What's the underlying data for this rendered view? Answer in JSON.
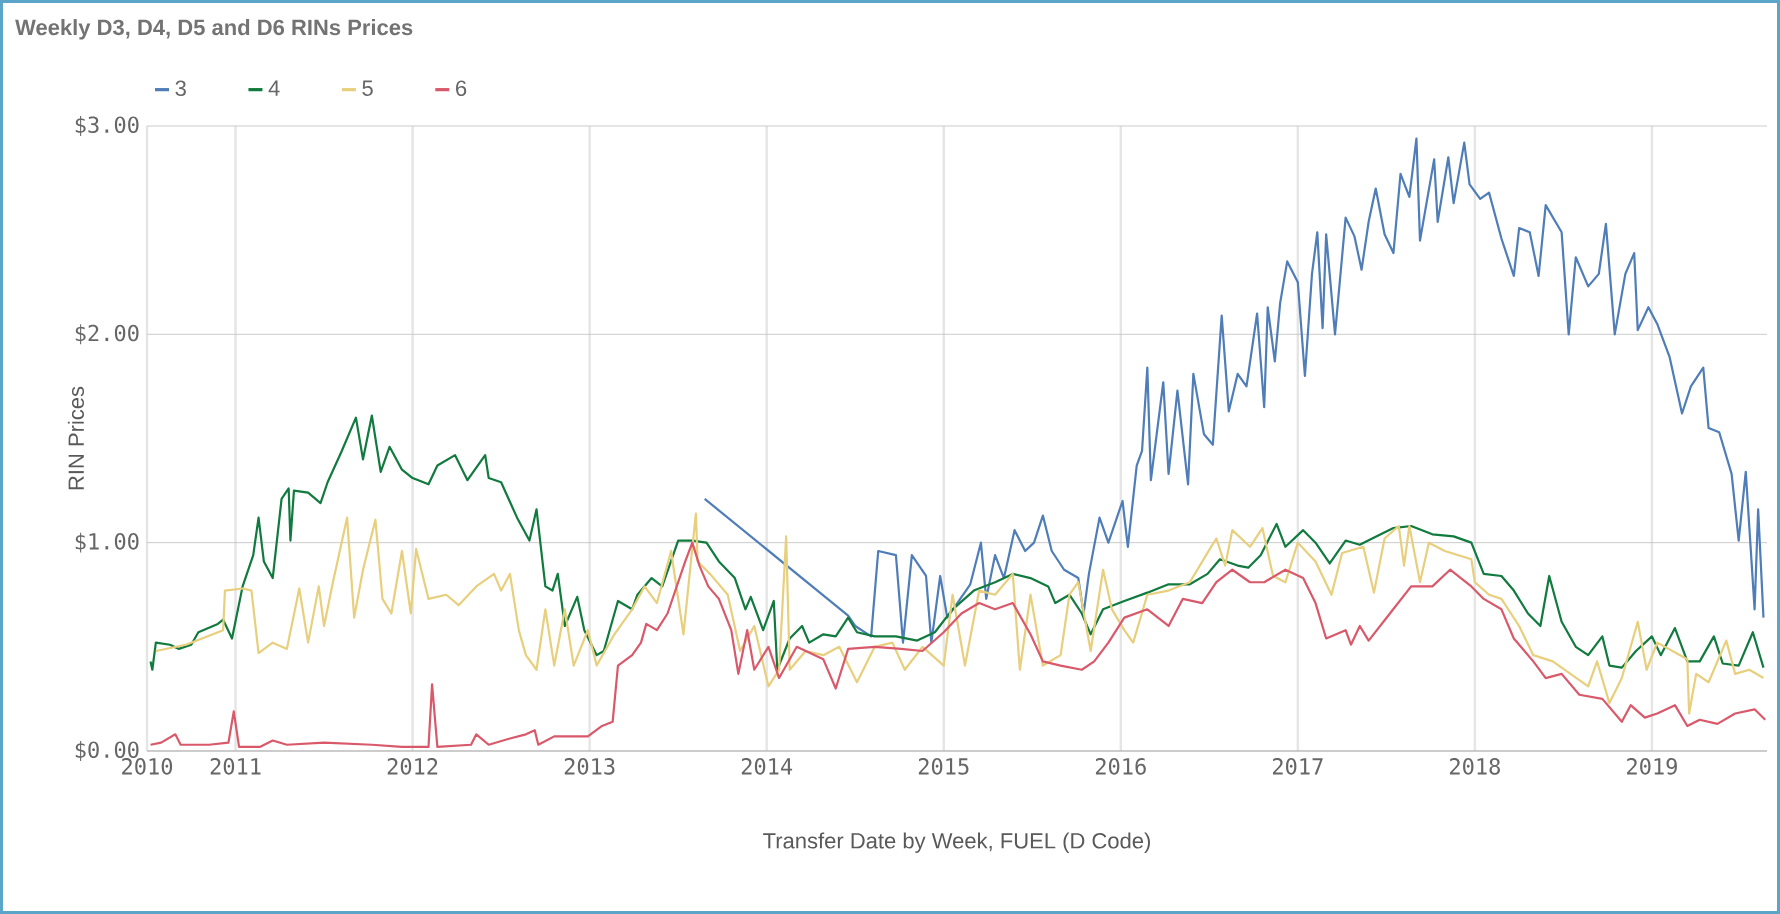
{
  "chart_data": {
    "type": "line",
    "title": "Weekly D3, D4, D5 and D6 RINs Prices",
    "xlabel": "Transfer Date by Week,  FUEL (D Code)",
    "ylabel": "RIN Prices",
    "xlim": [
      2010.5,
      2019.65
    ],
    "ylim": [
      0,
      3
    ],
    "xticks": [
      {
        "value": 2010.5,
        "label": "2010"
      },
      {
        "value": 2011,
        "label": "2011"
      },
      {
        "value": 2012,
        "label": "2012"
      },
      {
        "value": 2013,
        "label": "2013"
      },
      {
        "value": 2014,
        "label": "2014"
      },
      {
        "value": 2015,
        "label": "2015"
      },
      {
        "value": 2016,
        "label": "2016"
      },
      {
        "value": 2017,
        "label": "2017"
      },
      {
        "value": 2018,
        "label": "2018"
      },
      {
        "value": 2019,
        "label": "2019"
      }
    ],
    "yticks": [
      {
        "value": 0,
        "label": "$0.00"
      },
      {
        "value": 1,
        "label": "$1.00"
      },
      {
        "value": 2,
        "label": "$2.00"
      },
      {
        "value": 3,
        "label": "$3.00"
      }
    ],
    "grid": true,
    "legend": "top left",
    "series": [
      {
        "name": "3",
        "color": "#4f7db8",
        "x": [
          2013.65,
          2014.46,
          2014.5,
          2014.59,
          2014.63,
          2014.73,
          2014.77,
          2014.82,
          2014.9,
          2014.93,
          2014.98,
          2015.02,
          2015.15,
          2015.21,
          2015.24,
          2015.29,
          2015.34,
          2015.4,
          2015.46,
          2015.51,
          2015.56,
          2015.61,
          2015.68,
          2015.76,
          2015.79,
          2015.82,
          2015.88,
          2015.93,
          2016.01,
          2016.04,
          2016.09,
          2016.12,
          2016.15,
          2016.17,
          2016.24,
          2016.27,
          2016.32,
          2016.38,
          2016.41,
          2016.47,
          2016.52,
          2016.57,
          2016.61,
          2016.66,
          2016.71,
          2016.77,
          2016.81,
          2016.83,
          2016.87,
          2016.9,
          2016.94,
          2017.0,
          2017.04,
          2017.08,
          2017.11,
          2017.14,
          2017.16,
          2017.21,
          2017.27,
          2017.32,
          2017.36,
          2017.4,
          2017.44,
          2017.49,
          2017.54,
          2017.58,
          2017.63,
          2017.67,
          2017.69,
          2017.77,
          2017.79,
          2017.85,
          2017.88,
          2017.94,
          2017.97,
          2018.03,
          2018.08,
          2018.15,
          2018.22,
          2018.25,
          2018.31,
          2018.36,
          2018.4,
          2018.49,
          2018.53,
          2018.57,
          2018.64,
          2018.7,
          2018.74,
          2018.79,
          2018.85,
          2018.9,
          2018.92,
          2018.98,
          2019.03,
          2019.1,
          2019.17,
          2019.22,
          2019.29,
          2019.32,
          2019.38,
          2019.45,
          2019.49,
          2019.53,
          2019.58,
          2019.6,
          2019.63
        ],
        "values": [
          1.21,
          0.65,
          0.6,
          0.55,
          0.96,
          0.94,
          0.52,
          0.94,
          0.84,
          0.52,
          0.84,
          0.64,
          0.8,
          1.0,
          0.73,
          0.94,
          0.83,
          1.06,
          0.96,
          1.0,
          1.13,
          0.96,
          0.87,
          0.83,
          0.66,
          0.85,
          1.12,
          1.0,
          1.2,
          0.98,
          1.37,
          1.44,
          1.84,
          1.3,
          1.77,
          1.33,
          1.73,
          1.28,
          1.81,
          1.52,
          1.47,
          2.09,
          1.63,
          1.81,
          1.75,
          2.1,
          1.65,
          2.13,
          1.87,
          2.15,
          2.35,
          2.25,
          1.8,
          2.29,
          2.49,
          2.03,
          2.48,
          2.0,
          2.56,
          2.47,
          2.31,
          2.54,
          2.7,
          2.48,
          2.39,
          2.77,
          2.66,
          2.94,
          2.45,
          2.84,
          2.54,
          2.85,
          2.63,
          2.92,
          2.72,
          2.65,
          2.68,
          2.46,
          2.28,
          2.51,
          2.49,
          2.28,
          2.62,
          2.49,
          2.0,
          2.37,
          2.23,
          2.29,
          2.53,
          2.0,
          2.29,
          2.39,
          2.02,
          2.13,
          2.05,
          1.89,
          1.62,
          1.75,
          1.84,
          1.55,
          1.53,
          1.33,
          1.01,
          1.34,
          0.68,
          1.16,
          0.64
        ]
      },
      {
        "name": "4",
        "color": "#117a3e",
        "x": [
          2010.52,
          2010.53,
          2010.55,
          2010.63,
          2010.68,
          2010.75,
          2010.79,
          2010.9,
          2010.93,
          2010.98,
          2011.04,
          2011.1,
          2011.13,
          2011.16,
          2011.21,
          2011.26,
          2011.3,
          2011.31,
          2011.33,
          2011.41,
          2011.48,
          2011.52,
          2011.6,
          2011.68,
          2011.72,
          2011.77,
          2011.82,
          2011.87,
          2011.94,
          2012.0,
          2012.09,
          2012.14,
          2012.24,
          2012.31,
          2012.41,
          2012.43,
          2012.5,
          2012.59,
          2012.66,
          2012.7,
          2012.75,
          2012.79,
          2012.82,
          2012.86,
          2012.93,
          2012.97,
          2013.04,
          2013.08,
          2013.16,
          2013.24,
          2013.27,
          2013.35,
          2013.41,
          2013.5,
          2013.58,
          2013.66,
          2013.73,
          2013.82,
          2013.88,
          2013.91,
          2013.98,
          2014.04,
          2014.06,
          2014.13,
          2014.2,
          2014.24,
          2014.32,
          2014.39,
          2014.46,
          2014.51,
          2014.61,
          2014.73,
          2014.85,
          2014.95,
          2015.05,
          2015.17,
          2015.29,
          2015.39,
          2015.49,
          2015.59,
          2015.63,
          2015.71,
          2015.78,
          2015.83,
          2015.9,
          2016.02,
          2016.15,
          2016.27,
          2016.39,
          2016.49,
          2016.56,
          2016.66,
          2016.72,
          2016.79,
          2016.88,
          2016.93,
          2017.03,
          2017.1,
          2017.18,
          2017.27,
          2017.35,
          2017.42,
          2017.54,
          2017.64,
          2017.76,
          2017.88,
          2017.98,
          2018.05,
          2018.15,
          2018.22,
          2018.3,
          2018.37,
          2018.42,
          2018.49,
          2018.57,
          2018.64,
          2018.72,
          2018.76,
          2018.83,
          2018.91,
          2019.0,
          2019.05,
          2019.13,
          2019.2,
          2019.27,
          2019.35,
          2019.4,
          2019.49,
          2019.57,
          2019.63
        ],
        "values": [
          0.43,
          0.39,
          0.52,
          0.51,
          0.49,
          0.51,
          0.57,
          0.61,
          0.63,
          0.54,
          0.79,
          0.94,
          1.12,
          0.91,
          0.83,
          1.21,
          1.26,
          1.01,
          1.25,
          1.24,
          1.19,
          1.29,
          1.44,
          1.6,
          1.4,
          1.61,
          1.34,
          1.46,
          1.35,
          1.31,
          1.28,
          1.37,
          1.42,
          1.3,
          1.42,
          1.31,
          1.29,
          1.12,
          1.01,
          1.16,
          0.79,
          0.77,
          0.85,
          0.6,
          0.74,
          0.58,
          0.46,
          0.48,
          0.72,
          0.68,
          0.75,
          0.83,
          0.79,
          1.01,
          1.01,
          1.0,
          0.91,
          0.83,
          0.68,
          0.74,
          0.58,
          0.72,
          0.39,
          0.54,
          0.6,
          0.52,
          0.56,
          0.55,
          0.64,
          0.57,
          0.55,
          0.55,
          0.53,
          0.57,
          0.68,
          0.77,
          0.81,
          0.85,
          0.83,
          0.79,
          0.71,
          0.75,
          0.66,
          0.56,
          0.68,
          0.72,
          0.76,
          0.8,
          0.8,
          0.85,
          0.92,
          0.89,
          0.88,
          0.94,
          1.09,
          0.98,
          1.06,
          1.0,
          0.9,
          1.01,
          0.99,
          1.02,
          1.07,
          1.08,
          1.04,
          1.03,
          1.0,
          0.85,
          0.84,
          0.77,
          0.66,
          0.6,
          0.84,
          0.62,
          0.5,
          0.46,
          0.55,
          0.41,
          0.4,
          0.48,
          0.55,
          0.46,
          0.59,
          0.43,
          0.43,
          0.55,
          0.42,
          0.41,
          0.57,
          0.4
        ]
      },
      {
        "name": "5",
        "color": "#e8cf7d",
        "x": [
          2010.55,
          2010.72,
          2010.93,
          2010.94,
          2011.04,
          2011.09,
          2011.13,
          2011.21,
          2011.29,
          2011.36,
          2011.41,
          2011.47,
          2011.5,
          2011.55,
          2011.63,
          2011.67,
          2011.72,
          2011.79,
          2011.83,
          2011.88,
          2011.94,
          2011.99,
          2012.02,
          2012.09,
          2012.19,
          2012.26,
          2012.36,
          2012.46,
          2012.5,
          2012.55,
          2012.6,
          2012.64,
          2012.7,
          2012.75,
          2012.8,
          2012.86,
          2012.91,
          2012.99,
          2013.04,
          2013.14,
          2013.24,
          2013.31,
          2013.38,
          2013.46,
          2013.53,
          2013.6,
          2013.61,
          2013.68,
          2013.78,
          2013.85,
          2013.93,
          2014.01,
          2014.07,
          2014.11,
          2014.13,
          2014.22,
          2014.32,
          2014.41,
          2014.51,
          2014.61,
          2014.71,
          2014.78,
          2014.88,
          2015.0,
          2015.05,
          2015.12,
          2015.2,
          2015.29,
          2015.39,
          2015.43,
          2015.49,
          2015.56,
          2015.66,
          2015.71,
          2015.76,
          2015.83,
          2015.9,
          2015.95,
          2016.02,
          2016.07,
          2016.15,
          2016.27,
          2016.39,
          2016.51,
          2016.54,
          2016.59,
          2016.63,
          2016.73,
          2016.8,
          2016.86,
          2016.93,
          2017.0,
          2017.1,
          2017.19,
          2017.25,
          2017.37,
          2017.43,
          2017.49,
          2017.57,
          2017.6,
          2017.63,
          2017.69,
          2017.74,
          2017.83,
          2017.98,
          2018.0,
          2018.08,
          2018.15,
          2018.25,
          2018.33,
          2018.44,
          2018.54,
          2018.64,
          2018.69,
          2018.76,
          2018.83,
          2018.92,
          2018.97,
          2019.03,
          2019.2,
          2019.21,
          2019.25,
          2019.32,
          2019.42,
          2019.47,
          2019.55,
          2019.63
        ],
        "values": [
          0.48,
          0.51,
          0.58,
          0.77,
          0.78,
          0.77,
          0.47,
          0.52,
          0.49,
          0.78,
          0.52,
          0.79,
          0.6,
          0.81,
          1.12,
          0.64,
          0.87,
          1.11,
          0.73,
          0.66,
          0.96,
          0.66,
          0.97,
          0.73,
          0.75,
          0.7,
          0.79,
          0.85,
          0.77,
          0.85,
          0.58,
          0.46,
          0.39,
          0.68,
          0.41,
          0.68,
          0.41,
          0.58,
          0.41,
          0.56,
          0.68,
          0.79,
          0.71,
          0.96,
          0.56,
          1.14,
          0.91,
          0.85,
          0.75,
          0.48,
          0.6,
          0.31,
          0.39,
          1.03,
          0.39,
          0.48,
          0.46,
          0.5,
          0.33,
          0.5,
          0.52,
          0.39,
          0.5,
          0.41,
          0.75,
          0.41,
          0.77,
          0.75,
          0.85,
          0.39,
          0.75,
          0.41,
          0.46,
          0.75,
          0.81,
          0.48,
          0.87,
          0.68,
          0.58,
          0.52,
          0.75,
          0.77,
          0.81,
          0.98,
          1.02,
          0.89,
          1.06,
          0.98,
          1.07,
          0.84,
          0.81,
          1.0,
          0.91,
          0.75,
          0.95,
          0.98,
          0.76,
          1.02,
          1.08,
          0.89,
          1.08,
          0.81,
          1.0,
          0.96,
          0.92,
          0.81,
          0.75,
          0.73,
          0.6,
          0.46,
          0.43,
          0.37,
          0.31,
          0.43,
          0.23,
          0.35,
          0.62,
          0.39,
          0.52,
          0.44,
          0.18,
          0.37,
          0.33,
          0.53,
          0.37,
          0.39,
          0.35
        ]
      },
      {
        "name": "6",
        "color": "#d9596b",
        "x": [
          2010.52,
          2010.58,
          2010.66,
          2010.69,
          2010.85,
          2010.96,
          2010.99,
          2011.02,
          2011.14,
          2011.21,
          2011.29,
          2011.5,
          2011.77,
          2011.94,
          2012.09,
          2012.11,
          2012.14,
          2012.33,
          2012.36,
          2012.43,
          2012.55,
          2012.64,
          2012.69,
          2012.71,
          2012.8,
          2012.99,
          2013.07,
          2013.13,
          2013.16,
          2013.24,
          2013.29,
          2013.32,
          2013.38,
          2013.44,
          2013.54,
          2013.58,
          2013.62,
          2013.67,
          2013.73,
          2013.8,
          2013.84,
          2013.89,
          2013.93,
          2014.01,
          2014.07,
          2014.17,
          2014.32,
          2014.39,
          2014.46,
          2014.61,
          2014.76,
          2014.88,
          2015.0,
          2015.1,
          2015.2,
          2015.29,
          2015.39,
          2015.49,
          2015.56,
          2015.66,
          2015.78,
          2015.85,
          2015.93,
          2016.02,
          2016.15,
          2016.27,
          2016.35,
          2016.46,
          2016.54,
          2016.63,
          2016.73,
          2016.81,
          2016.93,
          2017.03,
          2017.1,
          2017.16,
          2017.27,
          2017.3,
          2017.35,
          2017.4,
          2017.52,
          2017.64,
          2017.76,
          2017.86,
          2017.98,
          2018.05,
          2018.15,
          2018.22,
          2018.33,
          2018.4,
          2018.49,
          2018.59,
          2018.72,
          2018.83,
          2018.88,
          2018.96,
          2019.03,
          2019.13,
          2019.2,
          2019.27,
          2019.37,
          2019.47,
          2019.58,
          2019.64
        ],
        "values": [
          0.03,
          0.04,
          0.08,
          0.03,
          0.03,
          0.04,
          0.19,
          0.02,
          0.02,
          0.05,
          0.03,
          0.04,
          0.03,
          0.02,
          0.02,
          0.32,
          0.02,
          0.03,
          0.08,
          0.03,
          0.06,
          0.08,
          0.1,
          0.03,
          0.07,
          0.07,
          0.12,
          0.14,
          0.41,
          0.46,
          0.52,
          0.61,
          0.58,
          0.66,
          0.91,
          1.0,
          0.89,
          0.79,
          0.73,
          0.58,
          0.37,
          0.58,
          0.39,
          0.5,
          0.35,
          0.5,
          0.44,
          0.3,
          0.49,
          0.5,
          0.49,
          0.48,
          0.57,
          0.66,
          0.71,
          0.68,
          0.71,
          0.56,
          0.43,
          0.41,
          0.39,
          0.43,
          0.52,
          0.64,
          0.68,
          0.6,
          0.73,
          0.71,
          0.81,
          0.87,
          0.81,
          0.81,
          0.87,
          0.83,
          0.71,
          0.54,
          0.58,
          0.51,
          0.6,
          0.53,
          0.66,
          0.79,
          0.79,
          0.87,
          0.79,
          0.73,
          0.68,
          0.54,
          0.43,
          0.35,
          0.37,
          0.27,
          0.25,
          0.14,
          0.22,
          0.16,
          0.18,
          0.22,
          0.12,
          0.15,
          0.13,
          0.18,
          0.2,
          0.15
        ]
      }
    ]
  }
}
